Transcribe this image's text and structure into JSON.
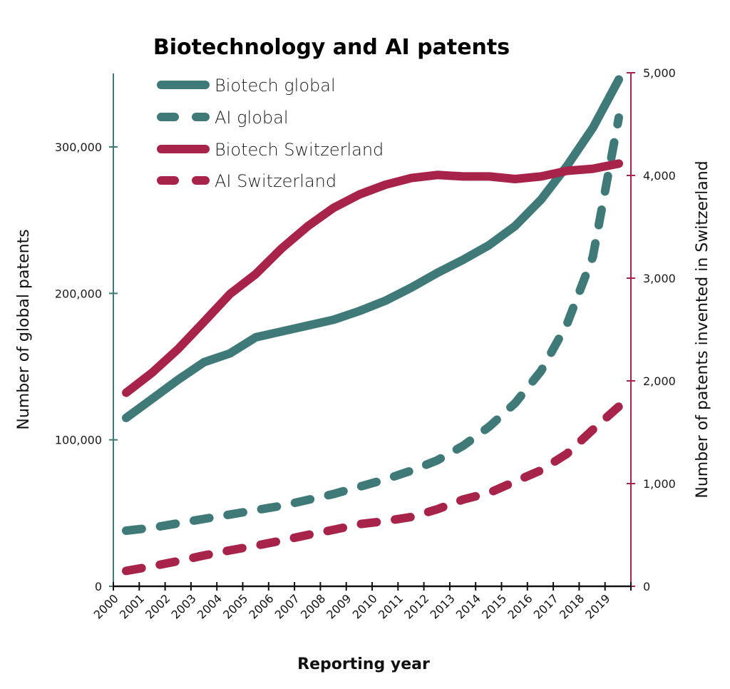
{
  "colors": {
    "global": "#3f7a78",
    "switzerland": "#a8234a",
    "axis": "#111111"
  },
  "chart_data": {
    "type": "line",
    "title": "Biotechnology and AI patents",
    "xlabel": "Reporting year",
    "ylabel": "Number of global patents",
    "ylabel_right": "Number of patents invented in Switzerland",
    "x": [
      "2000",
      "2001",
      "2002",
      "2003",
      "2004",
      "2005",
      "2006",
      "2007",
      "2008",
      "2009",
      "2010",
      "2011",
      "2012",
      "2013",
      "2014",
      "2015",
      "2016",
      "2017",
      "2018",
      "2019"
    ],
    "ylim": [
      0,
      350000
    ],
    "ylim_right": [
      0,
      5000
    ],
    "yticks": [
      0,
      100000,
      200000,
      300000
    ],
    "ytick_labels": [
      "0",
      "100,000",
      "200,000",
      "300,000"
    ],
    "yticks_right": [
      0,
      1000,
      2000,
      3000,
      4000,
      5000
    ],
    "ytick_labels_right": [
      "0",
      "1,000",
      "2,000",
      "3,000",
      "4,000",
      "5,000"
    ],
    "grid": false,
    "legend_position": "top-left",
    "series": [
      {
        "name": "Biotech global",
        "axis": "left",
        "style": "solid",
        "color_key": "global",
        "values": [
          115000,
          128000,
          141000,
          153000,
          159000,
          170000,
          174000,
          178000,
          182000,
          188000,
          195000,
          204000,
          214000,
          223000,
          233000,
          246000,
          264000,
          287000,
          313000,
          346000
        ]
      },
      {
        "name": "AI global",
        "axis": "left",
        "style": "dashed",
        "color_key": "global",
        "values": [
          38000,
          40000,
          43000,
          46000,
          49000,
          52000,
          55000,
          59000,
          63000,
          68000,
          73000,
          79000,
          86000,
          96000,
          109000,
          125000,
          147000,
          179000,
          225000,
          320000
        ]
      },
      {
        "name": "Biotech Switzerland",
        "axis": "right",
        "style": "solid",
        "color_key": "switzerland",
        "values": [
          1885,
          2080,
          2310,
          2575,
          2845,
          3040,
          3290,
          3505,
          3685,
          3815,
          3910,
          3975,
          4005,
          3990,
          3990,
          3965,
          3990,
          4045,
          4065,
          4115
        ]
      },
      {
        "name": "AI Switzerland",
        "axis": "right",
        "style": "dashed",
        "color_key": "switzerland",
        "values": [
          150,
          195,
          245,
          300,
          350,
          395,
          445,
          500,
          550,
          605,
          635,
          675,
          750,
          845,
          910,
          1020,
          1130,
          1290,
          1525,
          1750
        ]
      }
    ]
  }
}
